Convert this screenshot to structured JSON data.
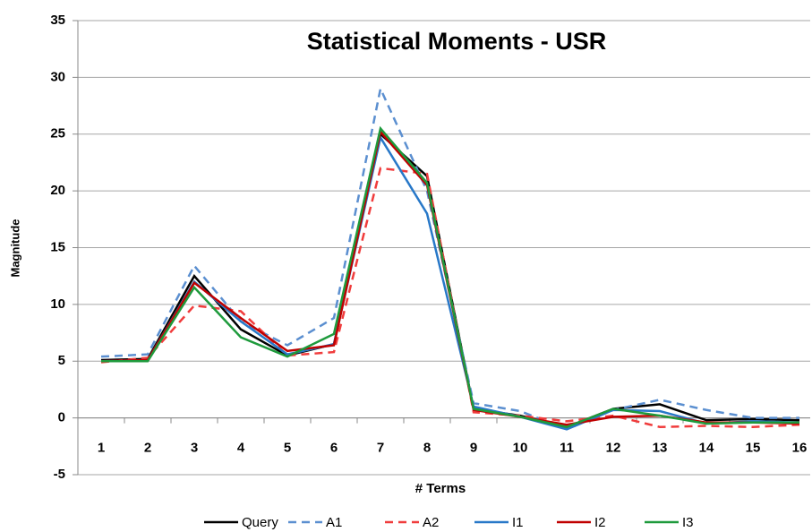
{
  "chart_data": {
    "type": "line",
    "title": "Statistical Moments - USR",
    "xlabel": "# Terms",
    "ylabel": "Magnitude",
    "categories": [
      "1",
      "2",
      "3",
      "4",
      "5",
      "6",
      "7",
      "8",
      "9",
      "10",
      "11",
      "12",
      "13",
      "14",
      "15",
      "16"
    ],
    "ylim": [
      -5,
      35
    ],
    "yticks": [
      -5,
      0,
      5,
      10,
      15,
      20,
      25,
      30,
      35
    ],
    "grid": true,
    "legend": "bottom",
    "series": [
      {
        "name": "Query",
        "color": "#000000",
        "dashed": false,
        "values": [
          5.1,
          5.2,
          12.5,
          7.8,
          5.5,
          6.5,
          25,
          21.3,
          0.8,
          0.2,
          -0.8,
          0.8,
          1.2,
          -0.2,
          -0.1,
          -0.2
        ]
      },
      {
        "name": "A1",
        "color": "#5b8fd0",
        "dashed": true,
        "values": [
          5.4,
          5.6,
          13.4,
          8.5,
          6.4,
          8.8,
          29,
          20,
          1.3,
          0.6,
          -1.0,
          0.7,
          1.6,
          0.7,
          0,
          0
        ]
      },
      {
        "name": "A2",
        "color": "#f03c3c",
        "dashed": true,
        "values": [
          4.9,
          5.3,
          9.9,
          9.4,
          5.5,
          5.8,
          22,
          21.5,
          0.5,
          0.2,
          -0.3,
          0.2,
          -0.8,
          -0.7,
          -0.8,
          -0.6
        ]
      },
      {
        "name": "I1",
        "color": "#2878c8",
        "dashed": false,
        "values": [
          5.0,
          5.1,
          12,
          8.5,
          5.6,
          6.5,
          24.7,
          18,
          1.0,
          0.1,
          -1.0,
          0.7,
          0.6,
          -0.5,
          -0.3,
          -0.4
        ]
      },
      {
        "name": "I2",
        "color": "#c00000",
        "dashed": false,
        "values": [
          5.0,
          5.1,
          11.9,
          8.8,
          5.9,
          6.4,
          25.2,
          20.5,
          0.7,
          0.1,
          -0.6,
          0.1,
          0.2,
          -0.4,
          -0.4,
          -0.5
        ]
      },
      {
        "name": "I3",
        "color": "#1e9a3c",
        "dashed": false,
        "values": [
          5.0,
          5.0,
          11.5,
          7.1,
          5.4,
          7.4,
          25.5,
          20.7,
          0.8,
          0.1,
          -0.8,
          0.8,
          0.2,
          -0.5,
          -0.4,
          -0.4
        ]
      }
    ]
  }
}
